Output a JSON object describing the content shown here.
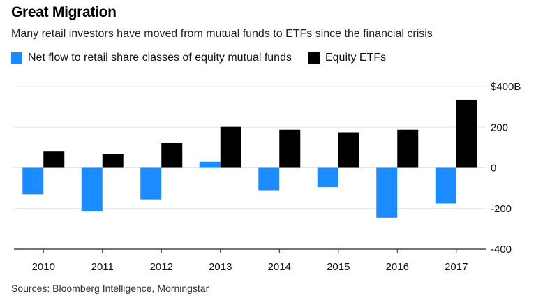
{
  "title": "Great Migration",
  "subtitle": "Many retail investors have moved from mutual funds to ETFs since the financial crisis",
  "source": "Sources: Bloomberg Intelligence, Morningstar",
  "colors": {
    "mutual_funds": "#1a8cff",
    "etfs": "#000000",
    "grid": "#e6e6e6",
    "axis": "#222222"
  },
  "chart_data": {
    "type": "bar",
    "categories": [
      "2010",
      "2011",
      "2012",
      "2013",
      "2014",
      "2015",
      "2016",
      "2017"
    ],
    "series": [
      {
        "name": "Net flow to retail share classes of equity mutual funds",
        "values": [
          -130,
          -215,
          -155,
          30,
          -110,
          -95,
          -245,
          -175
        ]
      },
      {
        "name": "Equity ETFs",
        "values": [
          80,
          68,
          122,
          202,
          188,
          175,
          188,
          335
        ]
      }
    ],
    "y_ticks": [
      400,
      200,
      0,
      -200,
      -400
    ],
    "y_tick_labels": [
      "$400B",
      "200",
      "0",
      "-200",
      "-400"
    ],
    "ylim": [
      -400,
      400
    ],
    "grid": true,
    "legend_position": "top-left"
  }
}
